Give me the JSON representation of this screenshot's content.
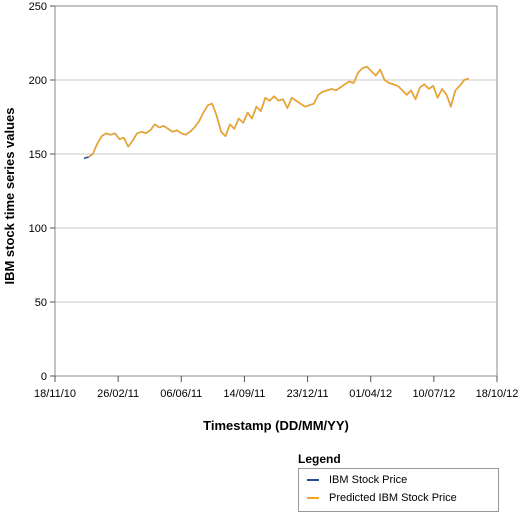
{
  "chart_data": {
    "type": "line",
    "xlabel": "Timestamp (DD/MM/YY)",
    "ylabel": "IBM stock time series values",
    "ylim": [
      0,
      250
    ],
    "y_ticks": [
      "0",
      "50",
      "100",
      "150",
      "200",
      "250"
    ],
    "x_ticks": [
      "18/11/10",
      "26/02/11",
      "06/06/11",
      "14/09/11",
      "23/12/11",
      "01/04/12",
      "10/07/12",
      "18/10/12"
    ],
    "x_tick_dates": [
      "2010-11-18",
      "2011-02-26",
      "2011-06-06",
      "2011-09-14",
      "2011-12-23",
      "2012-04-01",
      "2012-07-10",
      "2012-10-18"
    ],
    "xlim": [
      "2010-11-18",
      "2012-10-18"
    ],
    "grid": "horizontal",
    "legend_title": "Legend",
    "legend_position": "bottom-right",
    "series": [
      {
        "name": "IBM Stock Price",
        "color": "#2a4b9b",
        "x": [
          "2011-01-03",
          "2011-01-10",
          "2011-01-17",
          "2011-01-24",
          "2011-01-31",
          "2011-02-07",
          "2011-02-14",
          "2011-02-21",
          "2011-02-28",
          "2011-03-07",
          "2011-03-14",
          "2011-03-21",
          "2011-03-28",
          "2011-04-04",
          "2011-04-11",
          "2011-04-18",
          "2011-04-25",
          "2011-05-02",
          "2011-05-09",
          "2011-05-16",
          "2011-05-23",
          "2011-05-30",
          "2011-06-06",
          "2011-06-13",
          "2011-06-20",
          "2011-06-27",
          "2011-07-04",
          "2011-07-11",
          "2011-07-18",
          "2011-07-25",
          "2011-08-01",
          "2011-08-08",
          "2011-08-15",
          "2011-08-22",
          "2011-08-29",
          "2011-09-05",
          "2011-09-12",
          "2011-09-19",
          "2011-09-26",
          "2011-10-03",
          "2011-10-10",
          "2011-10-17",
          "2011-10-24",
          "2011-10-31",
          "2011-11-07",
          "2011-11-14",
          "2011-11-21",
          "2011-11-28",
          "2011-12-05",
          "2011-12-12",
          "2011-12-19",
          "2011-12-26",
          "2012-01-02",
          "2012-01-09",
          "2012-01-16",
          "2012-01-23",
          "2012-01-30",
          "2012-02-06",
          "2012-02-13",
          "2012-02-20",
          "2012-02-27",
          "2012-03-05",
          "2012-03-12",
          "2012-03-19",
          "2012-03-26",
          "2012-04-02",
          "2012-04-09",
          "2012-04-16",
          "2012-04-23",
          "2012-04-30",
          "2012-05-07",
          "2012-05-14",
          "2012-05-21",
          "2012-05-28",
          "2012-06-04",
          "2012-06-11",
          "2012-06-18",
          "2012-06-25",
          "2012-07-02",
          "2012-07-09",
          "2012-07-16",
          "2012-07-23",
          "2012-07-30",
          "2012-08-06",
          "2012-08-13",
          "2012-08-20",
          "2012-08-27",
          "2012-09-03"
        ],
        "values": [
          147,
          148,
          150,
          157,
          162,
          164,
          163,
          164,
          160,
          161,
          155,
          159,
          164,
          165,
          164,
          166,
          170,
          168,
          169,
          167,
          165,
          166,
          164,
          163,
          165,
          168,
          172,
          178,
          183,
          184,
          176,
          165,
          162,
          170,
          167,
          174,
          171,
          178,
          174,
          182,
          179,
          188,
          186,
          189,
          186,
          187,
          181,
          188,
          186,
          184,
          182,
          183,
          184,
          190,
          192,
          193,
          194,
          193,
          195,
          197,
          199,
          198,
          205,
          208,
          209,
          206,
          203,
          207,
          200,
          198,
          197,
          196,
          193,
          190,
          193,
          187,
          195,
          197,
          194,
          196,
          188,
          194,
          190,
          182,
          193,
          196,
          200,
          201
        ]
      },
      {
        "name": "Predicted IBM Stock Price",
        "color": "#f5a623",
        "x": [
          "2011-01-10",
          "2011-01-17",
          "2011-01-24",
          "2011-01-31",
          "2011-02-07",
          "2011-02-14",
          "2011-02-21",
          "2011-02-28",
          "2011-03-07",
          "2011-03-14",
          "2011-03-21",
          "2011-03-28",
          "2011-04-04",
          "2011-04-11",
          "2011-04-18",
          "2011-04-25",
          "2011-05-02",
          "2011-05-09",
          "2011-05-16",
          "2011-05-23",
          "2011-05-30",
          "2011-06-06",
          "2011-06-13",
          "2011-06-20",
          "2011-06-27",
          "2011-07-04",
          "2011-07-11",
          "2011-07-18",
          "2011-07-25",
          "2011-08-01",
          "2011-08-08",
          "2011-08-15",
          "2011-08-22",
          "2011-08-29",
          "2011-09-05",
          "2011-09-12",
          "2011-09-19",
          "2011-09-26",
          "2011-10-03",
          "2011-10-10",
          "2011-10-17",
          "2011-10-24",
          "2011-10-31",
          "2011-11-07",
          "2011-11-14",
          "2011-11-21",
          "2011-11-28",
          "2011-12-05",
          "2011-12-12",
          "2011-12-19",
          "2011-12-26",
          "2012-01-02",
          "2012-01-09",
          "2012-01-16",
          "2012-01-23",
          "2012-01-30",
          "2012-02-06",
          "2012-02-13",
          "2012-02-20",
          "2012-02-27",
          "2012-03-05",
          "2012-03-12",
          "2012-03-19",
          "2012-03-26",
          "2012-04-02",
          "2012-04-09",
          "2012-04-16",
          "2012-04-23",
          "2012-04-30",
          "2012-05-07",
          "2012-05-14",
          "2012-05-21",
          "2012-05-28",
          "2012-06-04",
          "2012-06-11",
          "2012-06-18",
          "2012-06-25",
          "2012-07-02",
          "2012-07-09",
          "2012-07-16",
          "2012-07-23",
          "2012-07-30",
          "2012-08-06",
          "2012-08-13",
          "2012-08-20",
          "2012-08-27",
          "2012-09-03"
        ],
        "values": [
          148,
          150,
          157,
          162,
          164,
          163,
          164,
          160,
          161,
          155,
          159,
          164,
          165,
          164,
          166,
          170,
          168,
          169,
          167,
          165,
          166,
          164,
          163,
          165,
          168,
          172,
          178,
          183,
          184,
          176,
          165,
          162,
          170,
          167,
          174,
          171,
          178,
          174,
          182,
          179,
          188,
          186,
          189,
          186,
          187,
          181,
          188,
          186,
          184,
          182,
          183,
          184,
          190,
          192,
          193,
          194,
          193,
          195,
          197,
          199,
          198,
          205,
          208,
          209,
          206,
          203,
          207,
          200,
          198,
          197,
          196,
          193,
          190,
          193,
          187,
          195,
          197,
          194,
          196,
          188,
          194,
          190,
          182,
          193,
          196,
          200,
          201
        ]
      }
    ]
  }
}
